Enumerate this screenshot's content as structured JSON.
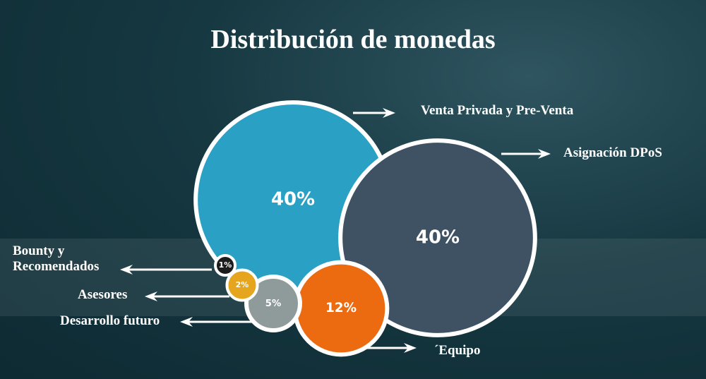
{
  "chart_data": {
    "type": "bubble",
    "title": "Distribución de monedas",
    "categories": [
      "Venta Privada y Pre-Venta",
      "Asignación DPoS",
      "´Equipo",
      "Desarrollo futuro",
      "Asesores",
      "Bounty y Recomendados"
    ],
    "values": [
      40,
      40,
      12,
      5,
      2,
      1
    ],
    "value_labels": [
      "40%",
      "40%",
      "12%",
      "5%",
      "2%",
      "1%"
    ],
    "colors": [
      "#2aa1c4",
      "#3f5264",
      "#ec6a10",
      "#8f9a9b",
      "#e6a51e",
      "#1c1c1c"
    ]
  }
}
